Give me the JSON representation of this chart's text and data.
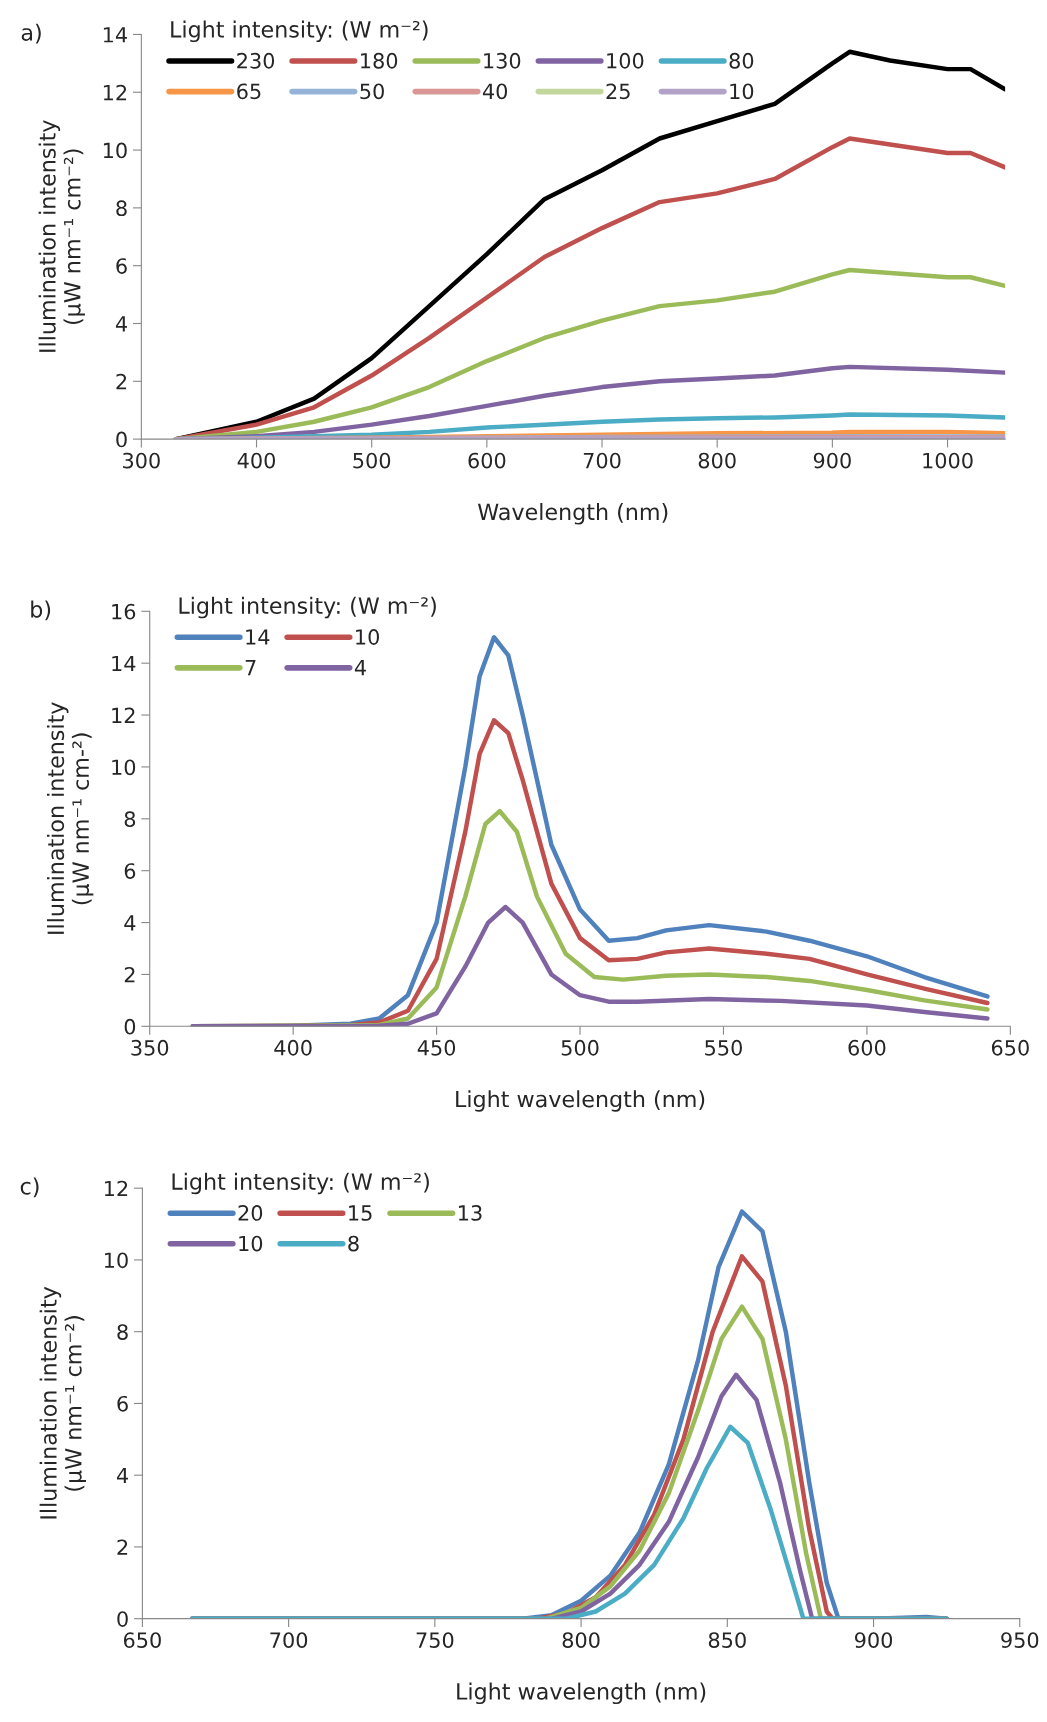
{
  "chart_data": [
    {
      "type": "line",
      "title": "a)",
      "xlabel": "Wavelength (nm)",
      "ylabel": "Illumination intensity\n(μW nm⁻¹ cm⁻²)",
      "legend_title": "Light intensity: (W m⁻²)",
      "legend": "top left",
      "xlim": [
        300,
        1050
      ],
      "xticks": [
        300,
        400,
        500,
        600,
        700,
        800,
        900,
        1000
      ],
      "ylim": [
        0,
        14
      ],
      "yticks": [
        0,
        2,
        4,
        6,
        8,
        10,
        12,
        14
      ],
      "series": [
        {
          "name": "230",
          "color": "#000000",
          "x": [
            330,
            350,
            400,
            450,
            500,
            550,
            600,
            650,
            700,
            750,
            800,
            850,
            900,
            915,
            950,
            1000,
            1020,
            1050
          ],
          "values": [
            0,
            null,
            0.6,
            1.4,
            2.8,
            4.6,
            6.4,
            8.3,
            9.3,
            10.4,
            11.0,
            11.6,
            13.0,
            13.4,
            13.1,
            12.8,
            12.8,
            12.1
          ]
        },
        {
          "name": "180",
          "color": "#c0504d",
          "x": [
            330,
            400,
            450,
            500,
            550,
            600,
            650,
            700,
            750,
            800,
            850,
            900,
            915,
            1000,
            1020,
            1050
          ],
          "values": [
            0,
            0.5,
            1.1,
            2.2,
            3.5,
            4.9,
            6.3,
            7.3,
            8.2,
            8.5,
            9.0,
            10.1,
            10.4,
            9.9,
            9.9,
            9.4
          ]
        },
        {
          "name": "130",
          "color": "#9bbb59",
          "x": [
            330,
            400,
            450,
            500,
            550,
            600,
            650,
            700,
            750,
            800,
            850,
            900,
            915,
            1000,
            1020,
            1050
          ],
          "values": [
            0,
            0.25,
            0.6,
            1.1,
            1.8,
            2.7,
            3.5,
            4.1,
            4.6,
            4.8,
            5.1,
            5.7,
            5.85,
            5.6,
            5.6,
            5.3
          ]
        },
        {
          "name": "100",
          "color": "#8064a2",
          "x": [
            330,
            400,
            450,
            500,
            550,
            600,
            650,
            700,
            750,
            800,
            850,
            900,
            915,
            1000,
            1050
          ],
          "values": [
            0,
            0.1,
            0.25,
            0.5,
            0.8,
            1.15,
            1.5,
            1.8,
            2.0,
            2.1,
            2.2,
            2.45,
            2.5,
            2.4,
            2.3
          ]
        },
        {
          "name": "80",
          "color": "#4bacc6",
          "x": [
            330,
            400,
            450,
            500,
            550,
            600,
            650,
            700,
            750,
            800,
            850,
            900,
            915,
            1000,
            1050
          ],
          "values": [
            0,
            0.05,
            0.1,
            0.15,
            0.25,
            0.4,
            0.5,
            0.6,
            0.68,
            0.72,
            0.75,
            0.82,
            0.85,
            0.82,
            0.75
          ]
        },
        {
          "name": "65",
          "color": "#f79646",
          "x": [
            330,
            400,
            500,
            600,
            700,
            800,
            900,
            915,
            1000,
            1050
          ],
          "values": [
            0,
            0.02,
            0.05,
            0.1,
            0.15,
            0.2,
            0.22,
            0.25,
            0.25,
            0.2
          ]
        },
        {
          "name": "50",
          "color": "#95b3d7",
          "x": [
            330,
            500,
            700,
            900,
            1050
          ],
          "values": [
            0,
            0.03,
            0.07,
            0.1,
            0.09
          ]
        },
        {
          "name": "40",
          "color": "#d99694",
          "x": [
            330,
            500,
            700,
            900,
            1050
          ],
          "values": [
            0,
            0.02,
            0.05,
            0.07,
            0.06
          ]
        },
        {
          "name": "25",
          "color": "#c3d69b"
        },
        {
          "name": "10",
          "color": "#b3a2c7",
          "x": [
            330,
            500,
            700,
            900,
            1050
          ],
          "values": [
            0,
            0.01,
            0.02,
            0.02,
            0.02
          ]
        }
      ]
    },
    {
      "type": "line",
      "title": "b)",
      "xlabel": "Light wavelength (nm)",
      "ylabel": "Illumination intensity\n(μW nm⁻¹ cm-²)",
      "legend_title": "Light intensity: (W m⁻²)",
      "legend": "top left",
      "xlim": [
        350,
        650
      ],
      "xticks": [
        350,
        400,
        450,
        500,
        550,
        600,
        650
      ],
      "ylim": [
        0,
        16
      ],
      "yticks": [
        0,
        2,
        4,
        6,
        8,
        10,
        12,
        14,
        16
      ],
      "series": [
        {
          "name": "14",
          "color": "#4f81bd",
          "x": [
            365,
            400,
            420,
            430,
            440,
            450,
            460,
            465,
            470,
            475,
            480,
            490,
            500,
            510,
            520,
            530,
            545,
            565,
            580,
            600,
            620,
            642
          ],
          "values": [
            0,
            0.02,
            0.1,
            0.3,
            1.2,
            4.0,
            10.0,
            13.5,
            15.0,
            14.3,
            12.0,
            7.0,
            4.5,
            3.3,
            3.4,
            3.7,
            3.9,
            3.65,
            3.3,
            2.7,
            1.9,
            1.15
          ]
        },
        {
          "name": "10",
          "color": "#c0504d",
          "x": [
            365,
            400,
            420,
            430,
            440,
            450,
            460,
            465,
            470,
            475,
            480,
            490,
            500,
            510,
            520,
            530,
            545,
            565,
            580,
            600,
            620,
            642
          ],
          "values": [
            0,
            0.02,
            0.05,
            0.15,
            0.6,
            2.6,
            7.5,
            10.5,
            11.8,
            11.3,
            9.5,
            5.5,
            3.4,
            2.55,
            2.6,
            2.85,
            3.0,
            2.8,
            2.6,
            2.0,
            1.45,
            0.9
          ]
        },
        {
          "name": "7",
          "color": "#9bbb59",
          "x": [
            365,
            430,
            440,
            450,
            460,
            467,
            472,
            478,
            485,
            495,
            505,
            515,
            530,
            545,
            565,
            580,
            600,
            620,
            642
          ],
          "values": [
            0,
            0.05,
            0.3,
            1.5,
            5.0,
            7.8,
            8.3,
            7.5,
            5.0,
            2.8,
            1.9,
            1.8,
            1.95,
            2.0,
            1.9,
            1.75,
            1.4,
            1.0,
            0.65
          ]
        },
        {
          "name": "4",
          "color": "#8064a2",
          "x": [
            365,
            430,
            440,
            450,
            460,
            468,
            474,
            480,
            490,
            500,
            510,
            520,
            545,
            570,
            600,
            620,
            642
          ],
          "values": [
            0,
            0.02,
            0.1,
            0.5,
            2.3,
            4.0,
            4.6,
            4.0,
            2.0,
            1.2,
            0.95,
            0.95,
            1.05,
            0.98,
            0.8,
            0.55,
            0.3
          ]
        }
      ]
    },
    {
      "type": "line",
      "title": "c)",
      "xlabel": "Light wavelength (nm)",
      "ylabel": "Illumination intensity\n(μW nm⁻¹ cm⁻²)",
      "legend_title": "Light intensity: (W m⁻²)",
      "legend": "top left",
      "xlim": [
        650,
        950
      ],
      "xticks": [
        650,
        700,
        750,
        800,
        850,
        900,
        950
      ],
      "ylim": [
        0,
        12
      ],
      "yticks": [
        0,
        2,
        4,
        6,
        8,
        10,
        12
      ],
      "series": [
        {
          "name": "20",
          "color": "#4f81bd",
          "x": [
            667,
            780,
            790,
            800,
            810,
            820,
            830,
            840,
            847,
            855,
            862,
            870,
            878,
            884,
            888,
            900,
            918,
            925
          ],
          "values": [
            0,
            0,
            0.1,
            0.5,
            1.2,
            2.4,
            4.3,
            7.2,
            9.8,
            11.35,
            10.8,
            8.0,
            3.8,
            1.0,
            0,
            0,
            0.05,
            0
          ]
        },
        {
          "name": "15",
          "color": "#c0504d",
          "x": [
            667,
            785,
            795,
            805,
            815,
            825,
            835,
            845,
            855,
            862,
            870,
            878,
            884,
            886,
            925
          ],
          "values": [
            0,
            0,
            0.15,
            0.6,
            1.5,
            2.9,
            5.0,
            8.0,
            10.1,
            9.4,
            6.5,
            2.5,
            0.2,
            0,
            0
          ]
        },
        {
          "name": "13",
          "color": "#9bbb59",
          "x": [
            667,
            788,
            800,
            810,
            820,
            830,
            840,
            848,
            855,
            862,
            870,
            877,
            882,
            925
          ],
          "values": [
            0,
            0,
            0.3,
            0.9,
            1.9,
            3.5,
            5.8,
            7.8,
            8.7,
            7.8,
            5.0,
            1.8,
            0,
            0
          ]
        },
        {
          "name": "10",
          "color": "#8064a2",
          "x": [
            667,
            790,
            800,
            810,
            820,
            830,
            840,
            848,
            853,
            860,
            868,
            875,
            879,
            925
          ],
          "values": [
            0,
            0,
            0.2,
            0.7,
            1.5,
            2.7,
            4.5,
            6.2,
            6.8,
            6.1,
            3.8,
            1.3,
            0,
            0
          ]
        },
        {
          "name": "8",
          "color": "#4bacc6",
          "x": [
            667,
            795,
            805,
            815,
            825,
            835,
            843,
            851,
            857,
            865,
            872,
            876,
            925
          ],
          "values": [
            0,
            0,
            0.2,
            0.7,
            1.5,
            2.8,
            4.2,
            5.35,
            4.9,
            3.0,
            1.1,
            0,
            0
          ]
        }
      ]
    }
  ]
}
